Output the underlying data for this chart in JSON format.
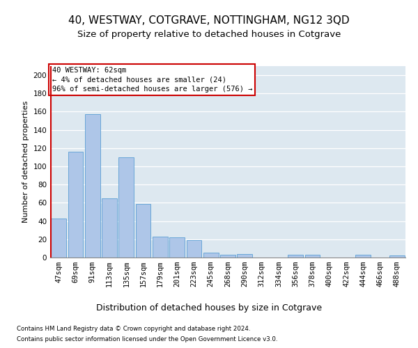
{
  "title1": "40, WESTWAY, COTGRAVE, NOTTINGHAM, NG12 3QD",
  "title2": "Size of property relative to detached houses in Cotgrave",
  "xlabel": "Distribution of detached houses by size in Cotgrave",
  "ylabel": "Number of detached properties",
  "categories": [
    "47sqm",
    "69sqm",
    "91sqm",
    "113sqm",
    "135sqm",
    "157sqm",
    "179sqm",
    "201sqm",
    "223sqm",
    "245sqm",
    "268sqm",
    "290sqm",
    "312sqm",
    "334sqm",
    "356sqm",
    "378sqm",
    "400sqm",
    "422sqm",
    "444sqm",
    "466sqm",
    "488sqm"
  ],
  "values": [
    43,
    116,
    157,
    65,
    110,
    59,
    23,
    22,
    19,
    5,
    3,
    4,
    0,
    0,
    3,
    3,
    0,
    0,
    3,
    0,
    2
  ],
  "bar_color": "#aec6e8",
  "bar_edge_color": "#5a9fd4",
  "highlight_color": "#cc0000",
  "annotation_text": "40 WESTWAY: 62sqm\n← 4% of detached houses are smaller (24)\n96% of semi-detached houses are larger (576) →",
  "annotation_box_color": "#ffffff",
  "annotation_box_edge": "#cc0000",
  "ylim": [
    0,
    210
  ],
  "yticks": [
    0,
    20,
    40,
    60,
    80,
    100,
    120,
    140,
    160,
    180,
    200
  ],
  "background_color": "#dde8f0",
  "footer1": "Contains HM Land Registry data © Crown copyright and database right 2024.",
  "footer2": "Contains public sector information licensed under the Open Government Licence v3.0.",
  "title1_fontsize": 11,
  "title2_fontsize": 9.5,
  "xlabel_fontsize": 9,
  "ylabel_fontsize": 8,
  "tick_fontsize": 7.5
}
